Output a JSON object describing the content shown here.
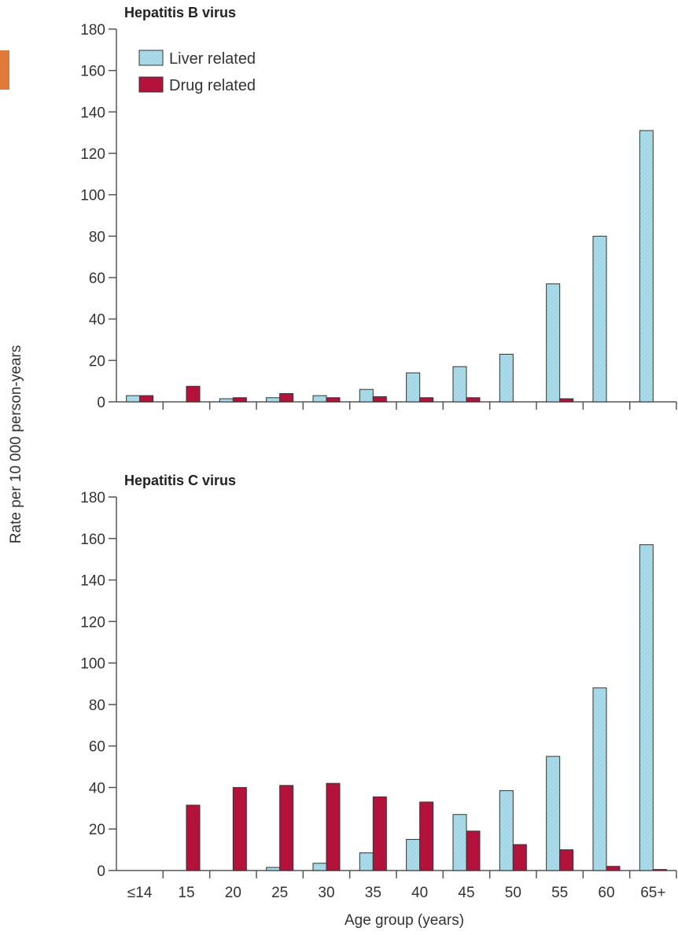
{
  "colors": {
    "liver": "#a9dbe9",
    "drug": "#b3123a",
    "axis": "#555555",
    "corner_marker": "#e07a3a"
  },
  "chart_data": [
    {
      "type": "bar",
      "title": "Hepatitis B virus",
      "categories": [
        "≤14",
        "15",
        "20",
        "25",
        "30",
        "35",
        "40",
        "45",
        "50",
        "55",
        "60",
        "65+"
      ],
      "series": [
        {
          "name": "Liver related",
          "values": [
            3,
            0,
            1.5,
            2,
            3,
            6,
            14,
            17,
            23,
            57,
            80,
            131
          ]
        },
        {
          "name": "Drug related",
          "values": [
            3,
            7.5,
            2,
            4,
            2,
            2.5,
            2,
            2,
            0,
            1.5,
            0,
            0
          ]
        }
      ],
      "ylim": [
        0,
        180
      ],
      "yticks": [
        0,
        20,
        40,
        60,
        80,
        100,
        120,
        140,
        160,
        180
      ],
      "legend": "top-left",
      "grid": false
    },
    {
      "type": "bar",
      "title": "Hepatitis C virus",
      "categories": [
        "≤14",
        "15",
        "20",
        "25",
        "30",
        "35",
        "40",
        "45",
        "50",
        "55",
        "60",
        "65+"
      ],
      "series": [
        {
          "name": "Liver related",
          "values": [
            0,
            0,
            0,
            1.5,
            3.5,
            8.5,
            15,
            27,
            38.5,
            55,
            88,
            157
          ]
        },
        {
          "name": "Drug related",
          "values": [
            0,
            31.5,
            40,
            41,
            42,
            35.5,
            33,
            19,
            12.5,
            10,
            2,
            0.5
          ]
        }
      ],
      "ylim": [
        0,
        180
      ],
      "yticks": [
        0,
        20,
        40,
        60,
        80,
        100,
        120,
        140,
        160,
        180
      ],
      "grid": false
    }
  ],
  "ylabel": "Rate per 10 000 person-years",
  "xlabel": "Age group (years)"
}
